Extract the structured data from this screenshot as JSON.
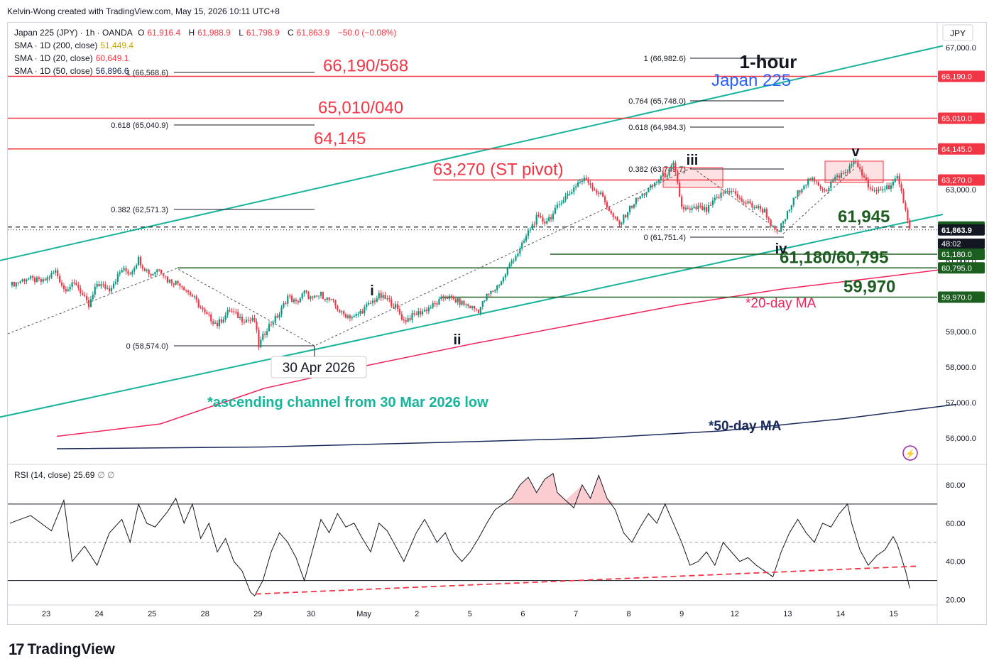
{
  "header": {
    "credit": "Kelvin-Wong created with TradingView.com, May 15, 2026 10:11 UTC+8"
  },
  "legend": {
    "symbol": "Japan 225 (JPY) · 1h · OANDA",
    "ohlc": [
      {
        "k": "O",
        "v": "61,916.4"
      },
      {
        "k": "H",
        "v": "61,988.9"
      },
      {
        "k": "L",
        "v": "61,798.9"
      },
      {
        "k": "C",
        "v": "61,863.9"
      }
    ],
    "change": "−50.0 (−0.08%)",
    "sma200_label": "SMA · 1D (200, close)",
    "sma200_value": "51,449.4",
    "sma20_label": "SMA · 1D (20, close)",
    "sma20_value": "60,649.1",
    "sma50_label": "SMA · 1D (50, close)",
    "sma50_value": "56,896.6"
  },
  "currency": "JPY",
  "colors": {
    "up": "#089981",
    "down": "#f23645",
    "red_level": "#f23645",
    "green_level": "#1b5e20",
    "channel": "#17b39a",
    "ma20": "#f0245c",
    "ma50": "#1a2a5c",
    "fib": "#131722",
    "blue": "#2962ff"
  },
  "chart_data": {
    "type": "candlestick",
    "instrument": "Japan 225 (JPY)",
    "timeframe": "1h",
    "price_axis": {
      "ylim": [
        55300,
        67700
      ],
      "ticks": [
        56000,
        57000,
        58000,
        59000,
        61000,
        63000,
        65000,
        67000
      ],
      "tick_labels": [
        "56,000.0",
        "57,000.0",
        "58,000.0",
        "59,000.0",
        "61,000.0",
        "63,000.0",
        "65,000.0",
        "67,000.0"
      ]
    },
    "x_tick_labels": [
      "23",
      "24",
      "25",
      "28",
      "29",
      "30",
      "May",
      "2",
      "5",
      "6",
      "7",
      "8",
      "9",
      "12",
      "13",
      "14",
      "15"
    ],
    "price_badges": [
      {
        "label": "66,190.0",
        "price": 66190,
        "style": "red"
      },
      {
        "label": "65,010.0",
        "price": 65010,
        "style": "red"
      },
      {
        "label": "64,145.0",
        "price": 64145,
        "style": "red"
      },
      {
        "label": "63,270.0",
        "price": 63270,
        "style": "red"
      },
      {
        "label": "61,945.0",
        "price": 61945,
        "style": "green"
      },
      {
        "label": "61,863.9",
        "price": 61863.9,
        "style": "last"
      },
      {
        "label": "48:02",
        "price": 61560,
        "style": "countdown"
      },
      {
        "label": "61,180.0",
        "price": 61180,
        "style": "green"
      },
      {
        "label": "60,795.0",
        "price": 60795,
        "style": "green"
      },
      {
        "label": "59,970.0",
        "price": 59970,
        "style": "green"
      }
    ],
    "levels": [
      {
        "price": 66190,
        "label": "66,190/568",
        "color": "red"
      },
      {
        "price": 65010,
        "label": "65,010/040",
        "color": "red"
      },
      {
        "price": 64145,
        "label": "64,145",
        "color": "red"
      },
      {
        "price": 63270,
        "label": "63,270 (ST pivot)",
        "color": "red"
      },
      {
        "price": 61945,
        "label": "61,945",
        "color": "green",
        "dashed": true
      },
      {
        "price": 61180,
        "label": "",
        "color": "green"
      },
      {
        "price": 60795,
        "label": "61,180/60,795",
        "color": "green"
      },
      {
        "price": 59970,
        "label": "59,970",
        "color": "green"
      }
    ],
    "fib_retracement": [
      {
        "label": "0 (58,574.0)",
        "price": 58574
      },
      {
        "label": "0.382 (62,571.3)",
        "price": 62571
      },
      {
        "label": "0.618 (65,040.9)",
        "price": 65041
      },
      {
        "label": "1 (66,568.6)",
        "price": 66568
      }
    ],
    "fib_extension": [
      {
        "label": "0 (61,751.4)",
        "price": 61751
      },
      {
        "label": "0.382 (63,749.7)",
        "price": 63750
      },
      {
        "label": "0.618 (64,984.3)",
        "price": 64984
      },
      {
        "label": "0.764 (65,748.0)",
        "price": 65748
      },
      {
        "label": "1 (66,982.6)",
        "price": 66983
      }
    ],
    "wave_labels": [
      "i",
      "ii",
      "iii",
      "iv",
      "v"
    ],
    "annotations": {
      "title_line1": "1-hour",
      "title_line2": "Japan 225",
      "date_callout": "30 Apr 2026",
      "channel_note": "*ascending channel from 30 Mar 2026 low",
      "ma20_note": "*20-day MA",
      "ma50_note": "*50-day MA"
    },
    "price_path": [
      [
        0,
        60300
      ],
      [
        8,
        60500
      ],
      [
        16,
        60400
      ],
      [
        22,
        60700
      ],
      [
        26,
        60200
      ],
      [
        32,
        60350
      ],
      [
        38,
        59700
      ],
      [
        42,
        60350
      ],
      [
        48,
        60200
      ],
      [
        54,
        60750
      ],
      [
        58,
        60650
      ],
      [
        62,
        61050
      ],
      [
        64,
        60850
      ],
      [
        68,
        60600
      ],
      [
        72,
        60800
      ],
      [
        76,
        60450
      ],
      [
        82,
        60350
      ],
      [
        88,
        60000
      ],
      [
        94,
        59500
      ],
      [
        100,
        59200
      ],
      [
        106,
        59600
      ],
      [
        112,
        59350
      ],
      [
        118,
        59300
      ],
      [
        120,
        58600
      ],
      [
        124,
        59100
      ],
      [
        130,
        59500
      ],
      [
        134,
        60000
      ],
      [
        138,
        59800
      ],
      [
        142,
        60100
      ],
      [
        146,
        59900
      ],
      [
        150,
        60050
      ],
      [
        156,
        59800
      ],
      [
        160,
        59500
      ],
      [
        166,
        59400
      ],
      [
        172,
        59700
      ],
      [
        178,
        60000
      ],
      [
        182,
        59900
      ],
      [
        186,
        59700
      ],
      [
        190,
        59300
      ],
      [
        196,
        59500
      ],
      [
        200,
        59600
      ],
      [
        206,
        59800
      ],
      [
        210,
        60000
      ],
      [
        214,
        59900
      ],
      [
        218,
        59800
      ],
      [
        222,
        59700
      ],
      [
        226,
        59600
      ],
      [
        230,
        60000
      ],
      [
        234,
        60200
      ],
      [
        238,
        60500
      ],
      [
        242,
        61000
      ],
      [
        246,
        61300
      ],
      [
        250,
        61800
      ],
      [
        254,
        62200
      ],
      [
        258,
        62100
      ],
      [
        262,
        62300
      ],
      [
        266,
        62700
      ],
      [
        270,
        62900
      ],
      [
        274,
        63200
      ],
      [
        278,
        63300
      ],
      [
        282,
        63000
      ],
      [
        286,
        62800
      ],
      [
        290,
        62300
      ],
      [
        294,
        62000
      ],
      [
        298,
        62400
      ],
      [
        302,
        62700
      ],
      [
        306,
        62900
      ],
      [
        310,
        63100
      ],
      [
        314,
        63350
      ],
      [
        318,
        63500
      ],
      [
        320,
        63700
      ],
      [
        322,
        63150
      ],
      [
        324,
        62500
      ],
      [
        328,
        62400
      ],
      [
        332,
        62500
      ],
      [
        336,
        62400
      ],
      [
        340,
        62700
      ],
      [
        344,
        62900
      ],
      [
        348,
        63000
      ],
      [
        352,
        62700
      ],
      [
        356,
        62600
      ],
      [
        360,
        62500
      ],
      [
        364,
        62400
      ],
      [
        368,
        61900
      ],
      [
        370,
        61750
      ],
      [
        374,
        62200
      ],
      [
        378,
        62700
      ],
      [
        382,
        63100
      ],
      [
        386,
        63300
      ],
      [
        390,
        63100
      ],
      [
        394,
        63000
      ],
      [
        396,
        63200
      ],
      [
        400,
        63400
      ],
      [
        404,
        63500
      ],
      [
        406,
        63800
      ],
      [
        410,
        63600
      ],
      [
        412,
        63300
      ],
      [
        416,
        62900
      ],
      [
        420,
        63000
      ],
      [
        424,
        63100
      ],
      [
        428,
        63300
      ],
      [
        430,
        62900
      ],
      [
        432,
        62500
      ],
      [
        434,
        61863
      ]
    ],
    "ma20_path": [
      [
        0,
        56050
      ],
      [
        50,
        56400
      ],
      [
        100,
        57400
      ],
      [
        150,
        58050
      ],
      [
        200,
        58650
      ],
      [
        250,
        59200
      ],
      [
        300,
        59750
      ],
      [
        350,
        60200
      ],
      [
        400,
        60550
      ],
      [
        434,
        60800
      ]
    ],
    "ma50_path": [
      [
        0,
        55700
      ],
      [
        100,
        55750
      ],
      [
        200,
        55900
      ],
      [
        260,
        56000
      ],
      [
        320,
        56200
      ],
      [
        380,
        56550
      ],
      [
        434,
        56950
      ]
    ],
    "channel_upper": [
      [
        -20,
        60800
      ],
      [
        450,
        67050
      ]
    ],
    "channel_lower": [
      [
        -20,
        56400
      ],
      [
        450,
        62300
      ]
    ],
    "rsi": {
      "label": "RSI (14, close)",
      "value": "25.69",
      "extra": "∅ ∅",
      "ylim": [
        18,
        90
      ],
      "ticks": [
        20,
        40,
        60,
        80
      ],
      "tick_labels": [
        "20.00",
        "40.00",
        "60.00",
        "80.00"
      ],
      "bands": [
        30,
        50,
        70
      ],
      "path": [
        [
          0,
          60
        ],
        [
          10,
          64
        ],
        [
          20,
          56
        ],
        [
          26,
          72
        ],
        [
          30,
          40
        ],
        [
          36,
          48
        ],
        [
          42,
          38
        ],
        [
          48,
          55
        ],
        [
          54,
          62
        ],
        [
          58,
          50
        ],
        [
          62,
          70
        ],
        [
          66,
          60
        ],
        [
          70,
          58
        ],
        [
          76,
          66
        ],
        [
          80,
          73
        ],
        [
          84,
          60
        ],
        [
          88,
          70
        ],
        [
          92,
          52
        ],
        [
          96,
          60
        ],
        [
          100,
          45
        ],
        [
          104,
          52
        ],
        [
          108,
          40
        ],
        [
          112,
          35
        ],
        [
          116,
          24
        ],
        [
          118,
          22
        ],
        [
          122,
          30
        ],
        [
          126,
          45
        ],
        [
          130,
          55
        ],
        [
          134,
          50
        ],
        [
          138,
          42
        ],
        [
          142,
          30
        ],
        [
          146,
          46
        ],
        [
          150,
          62
        ],
        [
          154,
          55
        ],
        [
          158,
          65
        ],
        [
          162,
          58
        ],
        [
          166,
          60
        ],
        [
          170,
          52
        ],
        [
          174,
          45
        ],
        [
          178,
          60
        ],
        [
          182,
          56
        ],
        [
          186,
          48
        ],
        [
          190,
          40
        ],
        [
          196,
          55
        ],
        [
          200,
          62
        ],
        [
          206,
          50
        ],
        [
          210,
          55
        ],
        [
          214,
          45
        ],
        [
          218,
          40
        ],
        [
          222,
          45
        ],
        [
          226,
          52
        ],
        [
          230,
          60
        ],
        [
          234,
          67
        ],
        [
          238,
          70
        ],
        [
          242,
          73
        ],
        [
          246,
          80
        ],
        [
          250,
          84
        ],
        [
          254,
          76
        ],
        [
          258,
          83
        ],
        [
          262,
          86
        ],
        [
          264,
          76
        ],
        [
          268,
          72
        ],
        [
          272,
          68
        ],
        [
          276,
          80
        ],
        [
          280,
          73
        ],
        [
          284,
          85
        ],
        [
          288,
          73
        ],
        [
          292,
          67
        ],
        [
          296,
          55
        ],
        [
          300,
          50
        ],
        [
          304,
          58
        ],
        [
          308,
          65
        ],
        [
          312,
          60
        ],
        [
          316,
          70
        ],
        [
          320,
          60
        ],
        [
          324,
          50
        ],
        [
          328,
          38
        ],
        [
          332,
          40
        ],
        [
          336,
          45
        ],
        [
          340,
          38
        ],
        [
          344,
          50
        ],
        [
          348,
          45
        ],
        [
          352,
          40
        ],
        [
          356,
          42
        ],
        [
          360,
          38
        ],
        [
          364,
          35
        ],
        [
          368,
          32
        ],
        [
          372,
          45
        ],
        [
          376,
          55
        ],
        [
          380,
          62
        ],
        [
          384,
          55
        ],
        [
          388,
          50
        ],
        [
          392,
          60
        ],
        [
          396,
          58
        ],
        [
          400,
          65
        ],
        [
          404,
          70
        ],
        [
          406,
          60
        ],
        [
          410,
          46
        ],
        [
          414,
          38
        ],
        [
          418,
          43
        ],
        [
          422,
          46
        ],
        [
          426,
          53
        ],
        [
          428,
          49
        ],
        [
          430,
          42
        ],
        [
          432,
          35
        ],
        [
          434,
          26
        ]
      ],
      "divergence_upper": [
        [
          347,
          24
        ],
        [
          440,
          38
        ]
      ]
    }
  }
}
